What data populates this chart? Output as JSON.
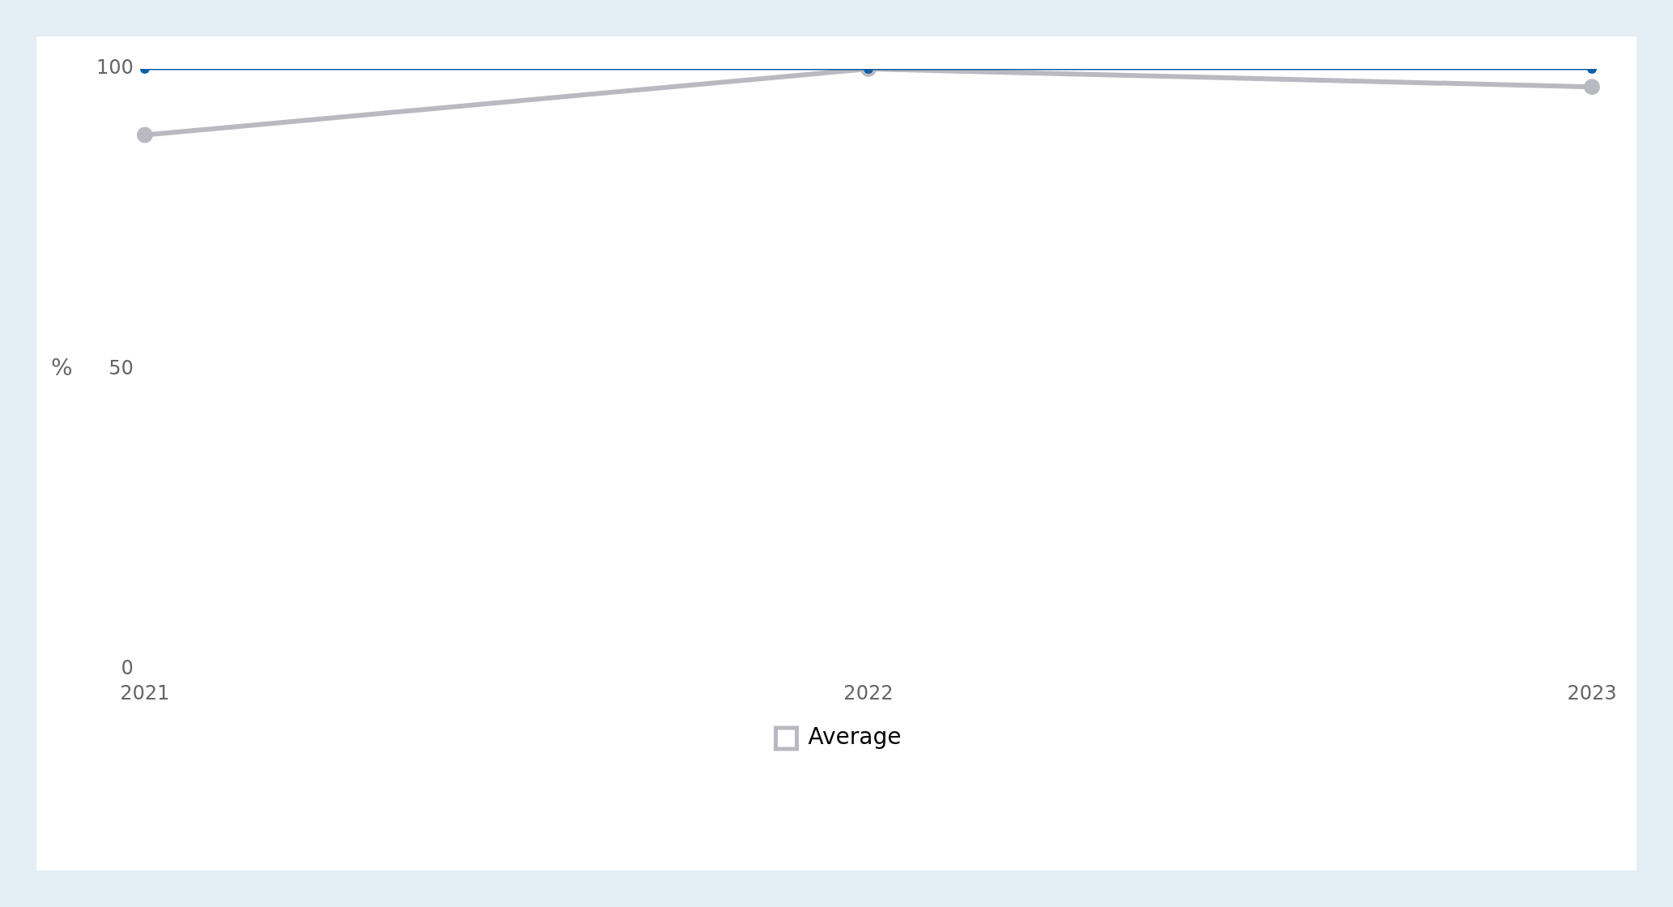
{
  "chart_data": {
    "type": "line",
    "ylabel": "%",
    "categories": [
      "2021",
      "2022",
      "2023"
    ],
    "series": [
      {
        "color": "#0b5fa5",
        "values": [
          100,
          100,
          100
        ]
      },
      {
        "name": "Average",
        "color": "#b9b9c1",
        "values": [
          89,
          100,
          97
        ]
      }
    ],
    "ylim": [
      0,
      100
    ],
    "yticks": [
      0,
      50,
      100
    ],
    "grid": false,
    "legend": "bottom",
    "marker": "circle",
    "line_style": "solid"
  }
}
